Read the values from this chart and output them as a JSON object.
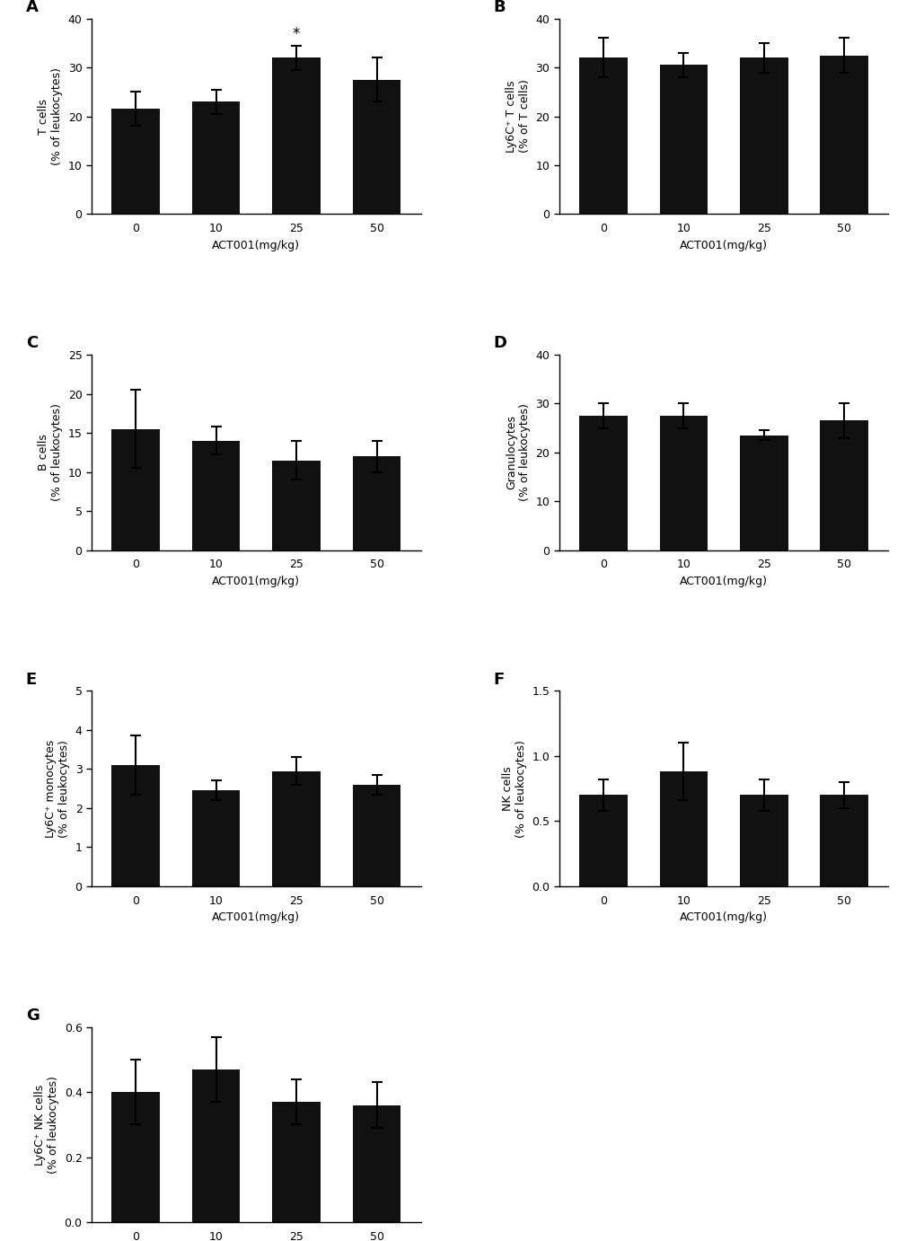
{
  "panels": [
    {
      "label": "A",
      "ylabel": "T cells\n(% of leukocytes)",
      "categories": [
        "0",
        "10",
        "25",
        "50"
      ],
      "values": [
        21.5,
        23.0,
        32.0,
        27.5
      ],
      "errors": [
        3.5,
        2.5,
        2.5,
        4.5
      ],
      "ylim": [
        0,
        40
      ],
      "yticks": [
        0,
        10,
        20,
        30,
        40
      ],
      "ytick_labels": [
        "0",
        "10",
        "20",
        "30",
        "40"
      ],
      "significance": [
        false,
        false,
        true,
        false
      ],
      "sig_text": "*"
    },
    {
      "label": "B",
      "ylabel": "Ly6C⁺ T cells\n(% of T cells)",
      "categories": [
        "0",
        "10",
        "25",
        "50"
      ],
      "values": [
        32.0,
        30.5,
        32.0,
        32.5
      ],
      "errors": [
        4.0,
        2.5,
        3.0,
        3.5
      ],
      "ylim": [
        0,
        40
      ],
      "yticks": [
        0,
        10,
        20,
        30,
        40
      ],
      "ytick_labels": [
        "0",
        "10",
        "20",
        "30",
        "40"
      ],
      "significance": [
        false,
        false,
        false,
        false
      ],
      "sig_text": ""
    },
    {
      "label": "C",
      "ylabel": "B cells\n(% of leukocytes)",
      "categories": [
        "0",
        "10",
        "25",
        "50"
      ],
      "values": [
        15.5,
        14.0,
        11.5,
        12.0
      ],
      "errors": [
        5.0,
        1.8,
        2.5,
        2.0
      ],
      "ylim": [
        0,
        25
      ],
      "yticks": [
        0,
        5,
        10,
        15,
        20,
        25
      ],
      "ytick_labels": [
        "0",
        "5",
        "10",
        "15",
        "20",
        "25"
      ],
      "significance": [
        false,
        false,
        false,
        false
      ],
      "sig_text": ""
    },
    {
      "label": "D",
      "ylabel": "Granulocytes\n(% of leukocytes)",
      "categories": [
        "0",
        "10",
        "25",
        "50"
      ],
      "values": [
        27.5,
        27.5,
        23.5,
        26.5
      ],
      "errors": [
        2.5,
        2.5,
        1.0,
        3.5
      ],
      "ylim": [
        0,
        40
      ],
      "yticks": [
        0,
        10,
        20,
        30,
        40
      ],
      "ytick_labels": [
        "0",
        "10",
        "20",
        "30",
        "40"
      ],
      "significance": [
        false,
        false,
        false,
        false
      ],
      "sig_text": ""
    },
    {
      "label": "E",
      "ylabel": "Ly6C⁺ monocytes\n(% of leukocytes)",
      "categories": [
        "0",
        "10",
        "25",
        "50"
      ],
      "values": [
        3.1,
        2.45,
        2.95,
        2.6
      ],
      "errors": [
        0.75,
        0.25,
        0.35,
        0.25
      ],
      "ylim": [
        0,
        5
      ],
      "yticks": [
        0,
        1,
        2,
        3,
        4,
        5
      ],
      "ytick_labels": [
        "0",
        "1",
        "2",
        "3",
        "4",
        "5"
      ],
      "significance": [
        false,
        false,
        false,
        false
      ],
      "sig_text": ""
    },
    {
      "label": "F",
      "ylabel": "NK cells\n(% of leukocytes)",
      "categories": [
        "0",
        "10",
        "25",
        "50"
      ],
      "values": [
        0.7,
        0.88,
        0.7,
        0.7
      ],
      "errors": [
        0.12,
        0.22,
        0.12,
        0.1
      ],
      "ylim": [
        0,
        1.5
      ],
      "yticks": [
        0.0,
        0.5,
        1.0,
        1.5
      ],
      "ytick_labels": [
        "0.0",
        "0.5",
        "1.0",
        "1.5"
      ],
      "significance": [
        false,
        false,
        false,
        false
      ],
      "sig_text": ""
    },
    {
      "label": "G",
      "ylabel": "Ly6C⁺ NK cells\n(% of leukocytes)",
      "categories": [
        "0",
        "10",
        "25",
        "50"
      ],
      "values": [
        0.4,
        0.47,
        0.37,
        0.36
      ],
      "errors": [
        0.1,
        0.1,
        0.07,
        0.07
      ],
      "ylim": [
        0,
        0.6
      ],
      "yticks": [
        0.0,
        0.2,
        0.4,
        0.6
      ],
      "ytick_labels": [
        "0.0",
        "0.2",
        "0.4",
        "0.6"
      ],
      "significance": [
        false,
        false,
        false,
        false
      ],
      "sig_text": ""
    }
  ],
  "bar_color": "#111111",
  "bar_width": 0.6,
  "xlabel": "ACT001(mg/kg)",
  "background_color": "#ffffff",
  "fig_width": 10.2,
  "fig_height": 13.82
}
